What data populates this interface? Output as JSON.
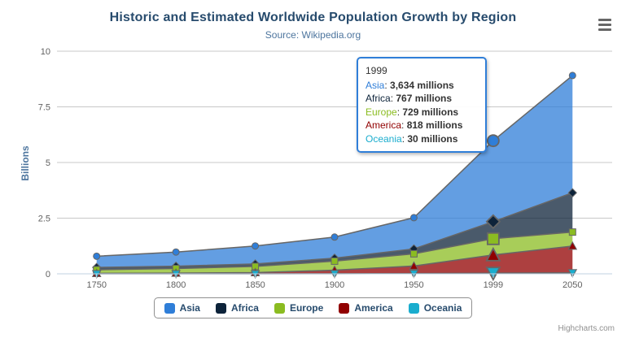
{
  "header": {
    "title": "Historic and Estimated Worldwide Population Growth by Region",
    "subtitle": "Source: Wikipedia.org"
  },
  "y_axis": {
    "title": "Billions"
  },
  "credits": {
    "label": "Highcharts.com"
  },
  "tooltip": {
    "header": "1999",
    "rows": [
      {
        "label": "Asia",
        "value": "3,634",
        "unit": "millions",
        "color": "#2f7ed8"
      },
      {
        "label": "Africa",
        "value": "767",
        "unit": "millions",
        "color": "#0d233a"
      },
      {
        "label": "Europe",
        "value": "729",
        "unit": "millions",
        "color": "#8bbc21"
      },
      {
        "label": "America",
        "value": "818",
        "unit": "millions",
        "color": "#910000"
      },
      {
        "label": "Oceania",
        "value": "30",
        "unit": "millions",
        "color": "#1aadce"
      }
    ]
  },
  "legend": {
    "items": [
      {
        "label": "Asia",
        "color": "#2f7ed8"
      },
      {
        "label": "Africa",
        "color": "#0d233a"
      },
      {
        "label": "Europe",
        "color": "#8bbc21"
      },
      {
        "label": "America",
        "color": "#910000"
      },
      {
        "label": "Oceania",
        "color": "#1aadce"
      }
    ]
  },
  "chart_data": {
    "type": "area",
    "stacking": "normal",
    "reversed_stacks": true,
    "title": "Historic and Estimated Worldwide Population Growth by Region",
    "subtitle": "Source: Wikipedia.org",
    "categories": [
      "1750",
      "1800",
      "1850",
      "1900",
      "1950",
      "1999",
      "2050"
    ],
    "unit": "millions",
    "series": [
      {
        "name": "Asia",
        "color": "#2f7ed8",
        "marker": "circle",
        "values": [
          502,
          635,
          809,
          947,
          1402,
          3634,
          5268
        ]
      },
      {
        "name": "Africa",
        "color": "#0d233a",
        "marker": "diamond",
        "values": [
          106,
          107,
          111,
          133,
          221,
          767,
          1766
        ]
      },
      {
        "name": "Europe",
        "color": "#8bbc21",
        "marker": "square",
        "values": [
          163,
          203,
          276,
          408,
          547,
          729,
          628
        ]
      },
      {
        "name": "America",
        "color": "#910000",
        "marker": "triangle",
        "values": [
          18,
          31,
          54,
          156,
          339,
          818,
          1201
        ]
      },
      {
        "name": "Oceania",
        "color": "#1aadce",
        "marker": "triangle-down",
        "values": [
          2,
          2,
          2,
          6,
          13,
          30,
          46
        ]
      }
    ],
    "ylabel": "Billions",
    "ylim": [
      0,
      10000
    ],
    "yticks": [
      {
        "label": "0",
        "value": 0
      },
      {
        "label": "2.5",
        "value": 2500
      },
      {
        "label": "5",
        "value": 5000
      },
      {
        "label": "7.5",
        "value": 7500
      },
      {
        "label": "10",
        "value": 10000
      }
    ],
    "hovered_category_index": 5,
    "legend_position": "bottom",
    "grid": true,
    "line_color": "#666666",
    "fill_opacity": 0.75,
    "axis_line_color": "#C0D0E0",
    "grid_line_color": "#C8C8C8"
  }
}
